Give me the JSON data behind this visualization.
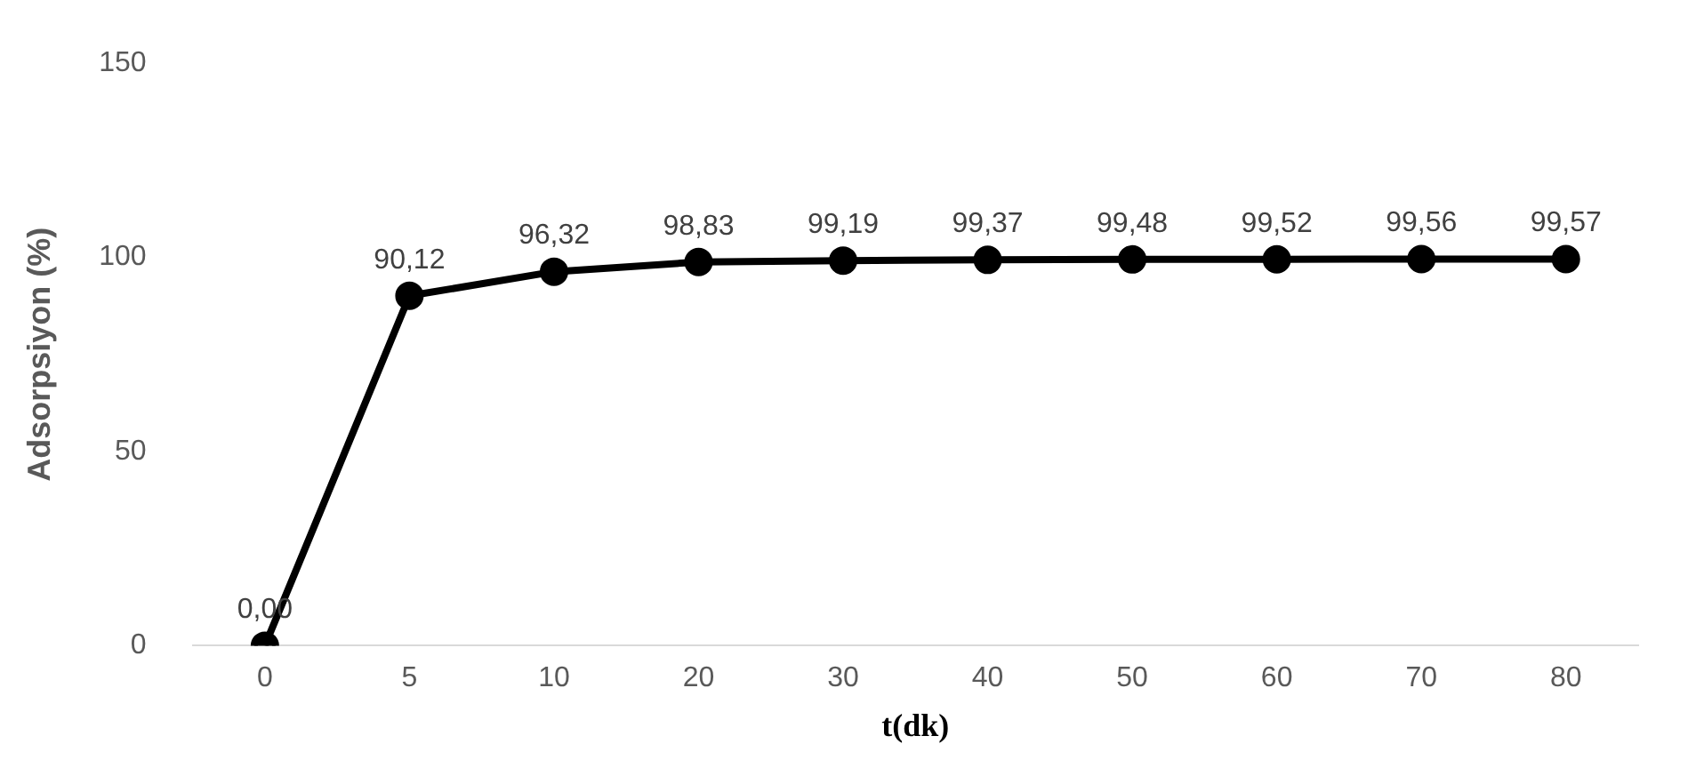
{
  "chart_data": {
    "type": "line",
    "xlabel": "t(dk)",
    "ylabel": "Adsorpsiyon (%)",
    "categories": [
      "0",
      "5",
      "10",
      "20",
      "30",
      "40",
      "50",
      "60",
      "70",
      "80"
    ],
    "series": [
      {
        "color": "#000000",
        "values": [
          0,
          90.12,
          96.32,
          98.83,
          99.19,
          99.37,
          99.48,
          99.52,
          99.56,
          99.57
        ],
        "value_labels": [
          "0,00",
          "90,12",
          "96,32",
          "98,83",
          "99,19",
          "99,37",
          "99,48",
          "99,52",
          "99,56",
          "99,57"
        ]
      }
    ],
    "ylim": [
      0,
      150
    ],
    "yticks": [
      0,
      50,
      100,
      150
    ],
    "grid": false,
    "legend": false,
    "marker": "circle",
    "line_style": "solid"
  }
}
